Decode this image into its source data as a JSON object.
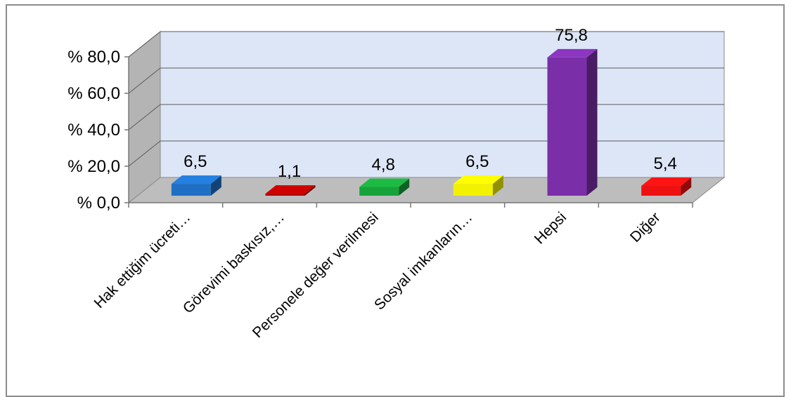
{
  "chart_data": {
    "type": "bar",
    "title": "",
    "xlabel": "",
    "ylabel": "",
    "categories": [
      "Hak ettiğim ücreti…",
      "Görevimi baskısız,…",
      "Personele değer verilmesi",
      "Sosyal imkanların…",
      "Hepsi",
      "Diğer"
    ],
    "values": [
      6.5,
      1.1,
      4.8,
      6.5,
      75.8,
      5.4
    ],
    "value_labels": [
      "6,5",
      "1,1",
      "4,8",
      "6,5",
      "75,8",
      "5,4"
    ],
    "ytick_values": [
      0,
      20,
      40,
      60,
      80
    ],
    "ytick_labels": [
      "% 0,0",
      "% 20,0",
      "% 40,0",
      "% 60,0",
      "% 80,0"
    ],
    "ylim": [
      0,
      80
    ],
    "grid": true,
    "legend": "none",
    "bar_colors": [
      "#1f6fc4",
      "#b30000",
      "#18a33a",
      "#f2f200",
      "#7a2fa8",
      "#ee1111"
    ],
    "wall_color": "#dde6f6",
    "floor_color": "#bdbdbd"
  }
}
